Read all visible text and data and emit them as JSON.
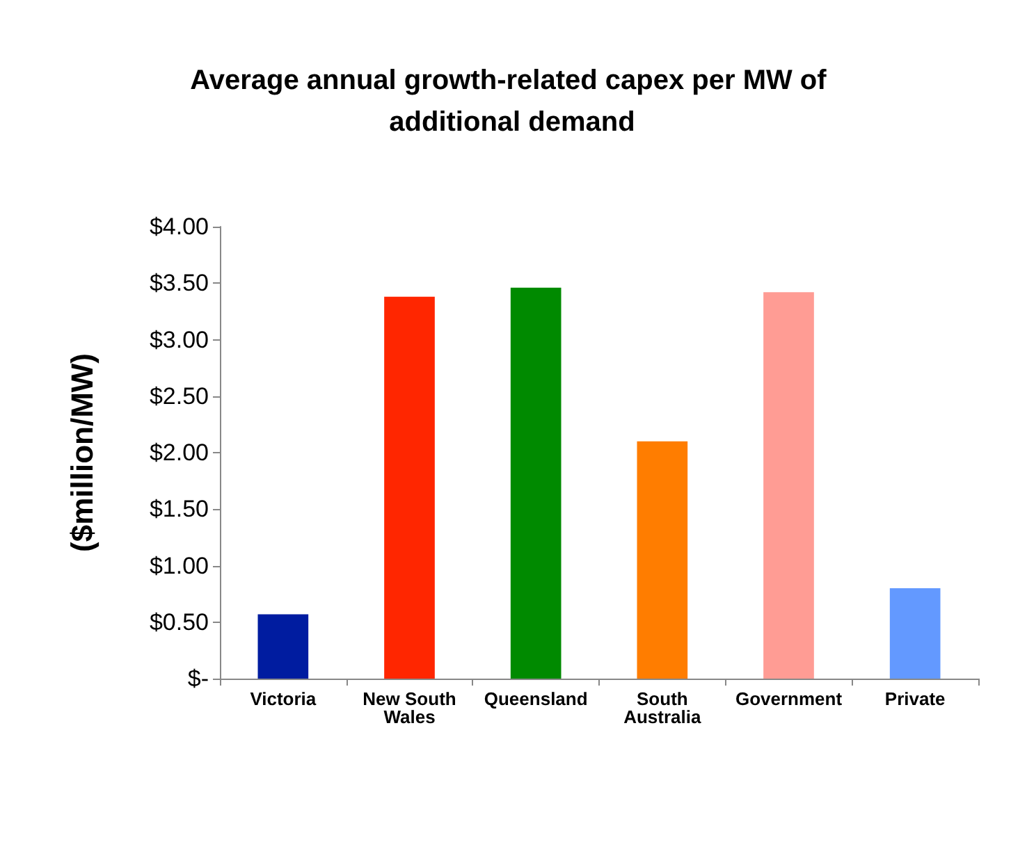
{
  "chart_data": {
    "type": "bar",
    "title": "Average annual growth-related capex per MW of additional demand",
    "ylabel": "($million/MW)",
    "categories": [
      "Victoria",
      "New South Wales",
      "Queensland",
      "South Australia",
      "Government",
      "Private"
    ],
    "values": [
      0.57,
      3.38,
      3.46,
      2.1,
      3.42,
      0.8
    ],
    "colors": [
      "#001ca0",
      "#ff2600",
      "#008a00",
      "#ff7d00",
      "#ff9c94",
      "#6399ff"
    ],
    "ylim": [
      0,
      4
    ],
    "yticks": [
      {
        "value": 0,
        "label": "$-"
      },
      {
        "value": 0.5,
        "label": "$0.50"
      },
      {
        "value": 1,
        "label": "$1.00"
      },
      {
        "value": 1.5,
        "label": "$1.50"
      },
      {
        "value": 2,
        "label": "$2.00"
      },
      {
        "value": 2.5,
        "label": "$2.50"
      },
      {
        "value": 3,
        "label": "$3.00"
      },
      {
        "value": 3.5,
        "label": "$3.50"
      },
      {
        "value": 4,
        "label": "$4.00"
      }
    ],
    "grid": false
  }
}
